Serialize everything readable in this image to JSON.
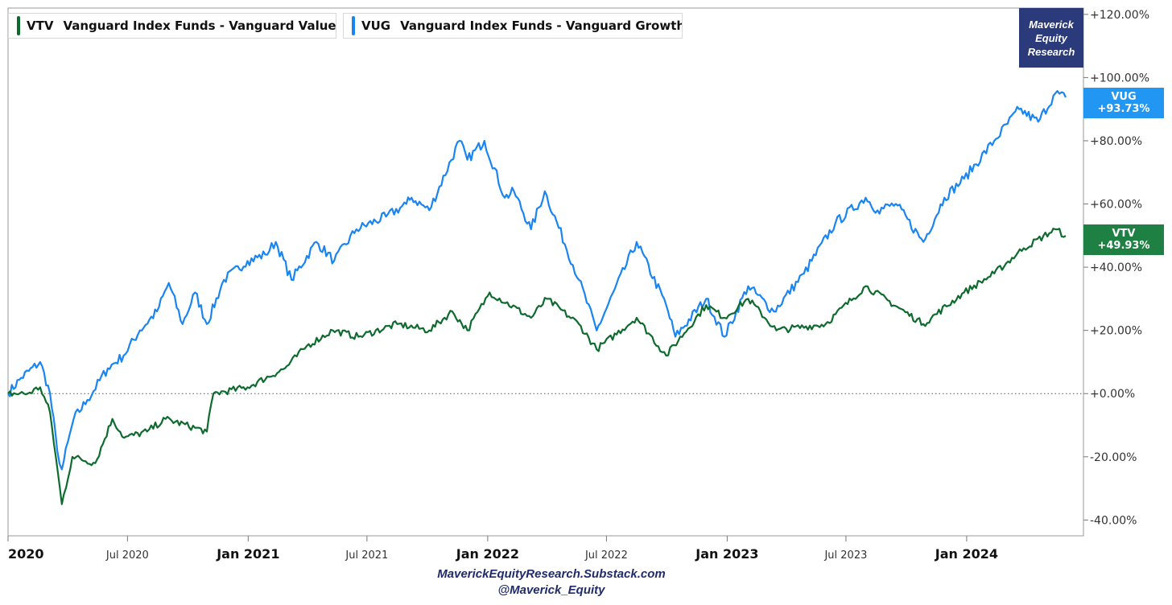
{
  "legend": [
    {
      "symbol": "VTV",
      "name": "Vanguard Index Funds - Vanguard Value E...",
      "color": "#0e6b2e"
    },
    {
      "symbol": "VUG",
      "name": "Vanguard Index Funds - Vanguard Growth E...",
      "color": "#1a85f0"
    }
  ],
  "logo": {
    "line1": "Maverick",
    "line2": "Equity",
    "line3": "Research"
  },
  "badges": [
    {
      "symbol": "VUG",
      "value": "+93.73%",
      "color": "#2196f3"
    },
    {
      "symbol": "VTV",
      "value": "+49.93%",
      "color": "#1e8043"
    }
  ],
  "footer": {
    "line1": "MaverickEquityResearch.Substack.com",
    "line2": "@Maverick_Equity"
  },
  "chart_data": {
    "type": "line",
    "ylim": [
      -45,
      122
    ],
    "y_ticks": [
      "+120.00%",
      "+100.00%",
      "+80.00%",
      "+60.00%",
      "+40.00%",
      "+20.00%",
      "+0.00%",
      "-20.00%",
      "-40.00%"
    ],
    "y_tick_values": [
      120,
      100,
      80,
      60,
      40,
      20,
      0,
      -20,
      -40
    ],
    "x_ticks": [
      {
        "label": "2020",
        "date": "2020-01-01",
        "major": true
      },
      {
        "label": "Jul 2020",
        "date": "2020-07-01",
        "major": false
      },
      {
        "label": "Jan 2021",
        "date": "2021-01-01",
        "major": true
      },
      {
        "label": "Jul 2021",
        "date": "2021-07-01",
        "major": false
      },
      {
        "label": "Jan 2022",
        "date": "2022-01-01",
        "major": true
      },
      {
        "label": "Jul 2022",
        "date": "2022-07-01",
        "major": false
      },
      {
        "label": "Jan 2023",
        "date": "2023-01-01",
        "major": true
      },
      {
        "label": "Jul 2023",
        "date": "2023-07-01",
        "major": false
      },
      {
        "label": "Jan 2024",
        "date": "2024-01-01",
        "major": true
      }
    ],
    "xlim": [
      "2020-01-01",
      "2024-05-31"
    ],
    "zero_line": true,
    "series": [
      {
        "name": "VUG",
        "color": "#1a85f0",
        "points": [
          [
            "2020-01-01",
            0
          ],
          [
            "2020-01-21",
            5
          ],
          [
            "2020-02-19",
            10
          ],
          [
            "2020-03-05",
            0
          ],
          [
            "2020-03-16",
            -18
          ],
          [
            "2020-03-23",
            -24
          ],
          [
            "2020-04-10",
            -8
          ],
          [
            "2020-05-01",
            -2
          ],
          [
            "2020-06-01",
            8
          ],
          [
            "2020-06-25",
            12
          ],
          [
            "2020-07-20",
            20
          ],
          [
            "2020-08-15",
            26
          ],
          [
            "2020-09-02",
            35
          ],
          [
            "2020-09-23",
            22
          ],
          [
            "2020-10-12",
            32
          ],
          [
            "2020-10-30",
            22
          ],
          [
            "2020-11-25",
            36
          ],
          [
            "2020-12-31",
            42
          ],
          [
            "2021-01-27",
            44
          ],
          [
            "2021-02-12",
            48
          ],
          [
            "2021-03-08",
            36
          ],
          [
            "2021-04-15",
            48
          ],
          [
            "2021-05-12",
            42
          ],
          [
            "2021-06-15",
            52
          ],
          [
            "2021-07-30",
            56
          ],
          [
            "2021-08-30",
            60
          ],
          [
            "2021-09-07",
            62
          ],
          [
            "2021-10-04",
            58
          ],
          [
            "2021-11-19",
            80
          ],
          [
            "2021-12-01",
            74
          ],
          [
            "2021-12-27",
            80
          ],
          [
            "2022-01-27",
            62
          ],
          [
            "2022-02-10",
            64
          ],
          [
            "2022-03-08",
            52
          ],
          [
            "2022-03-29",
            64
          ],
          [
            "2022-05-20",
            36
          ],
          [
            "2022-06-16",
            20
          ],
          [
            "2022-08-16",
            48
          ],
          [
            "2022-09-30",
            28
          ],
          [
            "2022-10-14",
            18
          ],
          [
            "2022-11-30",
            30
          ],
          [
            "2022-12-28",
            18
          ],
          [
            "2023-02-02",
            34
          ],
          [
            "2023-03-13",
            26
          ],
          [
            "2023-04-28",
            38
          ],
          [
            "2023-06-15",
            54
          ],
          [
            "2023-07-31",
            62
          ],
          [
            "2023-08-18",
            58
          ],
          [
            "2023-09-15",
            60
          ],
          [
            "2023-10-27",
            48
          ],
          [
            "2023-11-28",
            62
          ],
          [
            "2023-12-28",
            68
          ],
          [
            "2024-02-12",
            80
          ],
          [
            "2024-03-21",
            90
          ],
          [
            "2024-04-19",
            86
          ],
          [
            "2024-05-15",
            95
          ],
          [
            "2024-05-31",
            93.73
          ]
        ]
      },
      {
        "name": "VTV",
        "color": "#0e6b2e",
        "points": [
          [
            "2020-01-01",
            0
          ],
          [
            "2020-01-31",
            0
          ],
          [
            "2020-02-19",
            2
          ],
          [
            "2020-03-05",
            -6
          ],
          [
            "2020-03-23",
            -35
          ],
          [
            "2020-04-08",
            -20
          ],
          [
            "2020-05-13",
            -22
          ],
          [
            "2020-06-08",
            -8
          ],
          [
            "2020-06-26",
            -14
          ],
          [
            "2020-07-31",
            -12
          ],
          [
            "2020-08-28",
            -8
          ],
          [
            "2020-10-30",
            -12
          ],
          [
            "2020-11-09",
            0
          ],
          [
            "2020-12-31",
            2
          ],
          [
            "2021-02-26",
            8
          ],
          [
            "2021-03-31",
            15
          ],
          [
            "2021-05-10",
            20
          ],
          [
            "2021-06-18",
            18
          ],
          [
            "2021-08-16",
            22
          ],
          [
            "2021-10-04",
            20
          ],
          [
            "2021-11-08",
            26
          ],
          [
            "2021-12-01",
            20
          ],
          [
            "2022-01-04",
            32
          ],
          [
            "2022-03-08",
            24
          ],
          [
            "2022-04-01",
            30
          ],
          [
            "2022-05-20",
            22
          ],
          [
            "2022-06-16",
            14
          ],
          [
            "2022-08-16",
            24
          ],
          [
            "2022-09-30",
            12
          ],
          [
            "2022-11-30",
            28
          ],
          [
            "2022-12-28",
            24
          ],
          [
            "2023-02-02",
            30
          ],
          [
            "2023-03-17",
            20
          ],
          [
            "2023-05-31",
            22
          ],
          [
            "2023-07-31",
            34
          ],
          [
            "2023-10-27",
            22
          ],
          [
            "2023-12-28",
            32
          ],
          [
            "2024-02-12",
            38
          ],
          [
            "2024-03-28",
            46
          ],
          [
            "2024-05-15",
            52
          ],
          [
            "2024-05-31",
            49.93
          ]
        ]
      }
    ]
  }
}
